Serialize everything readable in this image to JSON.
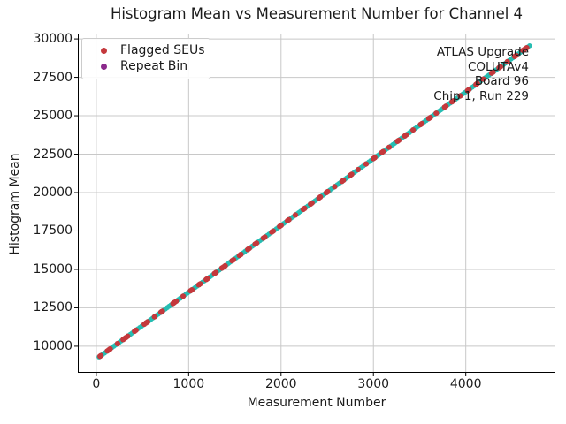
{
  "title": "Histogram Mean vs Measurement Number for Channel 4",
  "colors": {
    "trend_cyan": "#26BDB2",
    "flagged_red": "#C4383C",
    "repeat_purple": "#8B2A8B",
    "grid": "#C8C8C8",
    "spine": "#000000",
    "text": "#1b1b1b",
    "legend_border": "#cccccc"
  },
  "legend": {
    "items": [
      {
        "label": "Flagged SEUs",
        "color": "#C4383C"
      },
      {
        "label": "Repeat Bin",
        "color": "#8B2A8B"
      }
    ]
  },
  "annotations": {
    "lines": [
      "ATLAS Upgrade",
      "COLUTAv4",
      "Board 96",
      "Chip 1, Run 229"
    ]
  },
  "chart_data": {
    "type": "scatter",
    "title": "Histogram Mean vs Measurement Number for Channel 4",
    "xlabel": "Measurement Number",
    "ylabel": "Histogram Mean",
    "xlim": [
      -200,
      4970
    ],
    "ylim": [
      8270,
      30350
    ],
    "xticks": [
      0,
      1000,
      2000,
      3000,
      4000
    ],
    "yticks": [
      10000,
      12500,
      15000,
      17500,
      20000,
      22500,
      25000,
      27500,
      30000
    ],
    "grid": true,
    "legend_position": "upper left",
    "trend": {
      "comment": "all measurements lie on a near-linear ramp; points drawn every x_step",
      "x_start": 30,
      "x_end": 4700,
      "x_step": 20,
      "y_start": 9300,
      "y_end": 29600,
      "color": "#26BDB2",
      "marker_radius": 2.8
    },
    "series": [
      {
        "name": "Flagged SEUs",
        "color": "#C4383C",
        "marker_radius": 3.1,
        "y_rule": "on_trend",
        "x": [
          40,
          50,
          120,
          135,
          150,
          230,
          290,
          305,
          320,
          340,
          415,
          430,
          520,
          540,
          555,
          630,
          700,
          715,
          830,
          845,
          865,
          940,
          1020,
          1035,
          1110,
          1125,
          1190,
          1205,
          1280,
          1295,
          1360,
          1375,
          1395,
          1470,
          1485,
          1550,
          1565,
          1640,
          1655,
          1720,
          1735,
          1810,
          1825,
          1900,
          1915,
          1985,
          2000,
          2070,
          2085,
          2155,
          2240,
          2255,
          2320,
          2335,
          2410,
          2425,
          2490,
          2505,
          2580,
          2660,
          2675,
          2750,
          2765,
          2835,
          2920,
          3000,
          3015,
          3090,
          3105,
          3170,
          3260,
          3275,
          3340,
          3355,
          3430,
          3510,
          3525,
          3600,
          3615,
          3680,
          3770,
          3785,
          3850,
          3865,
          3940,
          4020,
          4035,
          4110,
          4125,
          4190,
          4280,
          4295,
          4360,
          4375,
          4450,
          4530,
          4545,
          4620,
          4635,
          4660
        ]
      },
      {
        "name": "Repeat Bin",
        "color": "#8B2A8B",
        "marker_radius": 3.1,
        "y_rule": "on_trend",
        "x": []
      }
    ]
  }
}
